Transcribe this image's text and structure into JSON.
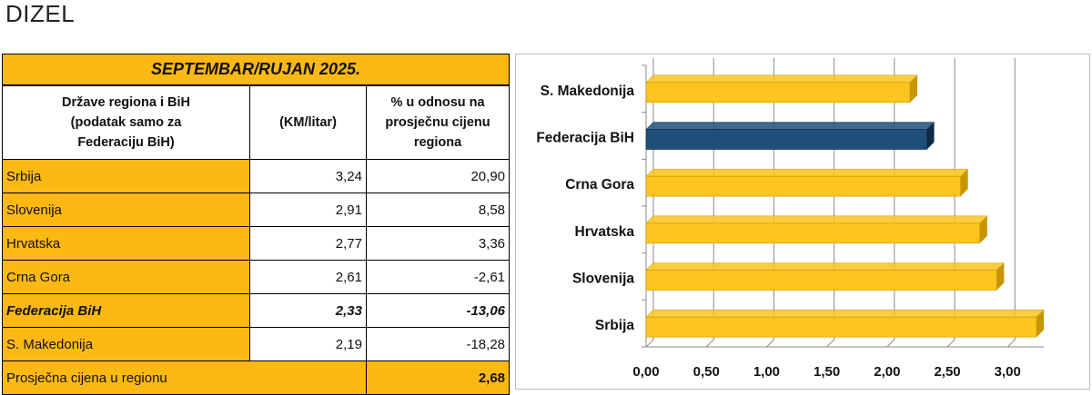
{
  "heading": "DIZEL",
  "table": {
    "title": "SEPTEMBAR/RUJAN 2025.",
    "col1_header": "Države regiona i BiH (podatak samo za Federaciju BiH)",
    "col2_header": "(KM/litar)",
    "col3_header": "% u odnosu na prosječnu cijenu regiona",
    "rows": [
      {
        "name": "Srbija",
        "price": "3,24",
        "pct": "20,90"
      },
      {
        "name": "Slovenija",
        "price": "2,91",
        "pct": "8,58"
      },
      {
        "name": "Hrvatska",
        "price": "2,77",
        "pct": "3,36"
      },
      {
        "name": "Crna Gora",
        "price": "2,61",
        "pct": "-2,61"
      },
      {
        "name": "Federacija BiH",
        "price": "2,33",
        "pct": "-13,06"
      },
      {
        "name": "S. Makedonija",
        "price": "2,19",
        "pct": "-18,28"
      }
    ],
    "average_label": "Prosječna cijena u regionu",
    "average_value": "2,68"
  },
  "chart_data": {
    "type": "bar",
    "orientation": "horizontal",
    "categories": [
      "S. Makedonija",
      "Federacija BiH",
      "Crna Gora",
      "Hrvatska",
      "Slovenija",
      "Srbija"
    ],
    "values": [
      2.19,
      2.33,
      2.61,
      2.77,
      2.91,
      3.24
    ],
    "highlight": "Federacija BiH",
    "xlim": [
      0,
      3.3
    ],
    "xticks": [
      "0,00",
      "0,50",
      "1,00",
      "1,50",
      "2,00",
      "2,50",
      "3,00"
    ],
    "xtick_values": [
      0,
      0.5,
      1,
      1.5,
      2,
      2.5,
      3
    ],
    "grid": true,
    "colors": {
      "bar": "#fcc51d",
      "bar_side": "#c99400",
      "highlight": "#1f4e79",
      "highlight_side": "#0d2a47"
    }
  }
}
